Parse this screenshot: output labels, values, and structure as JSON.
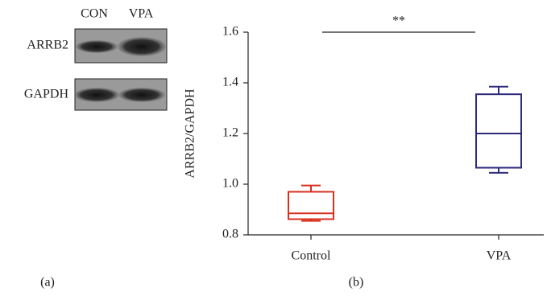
{
  "panel_a": {
    "lanes": [
      "CON",
      "VPA"
    ],
    "rows": [
      "ARRB2",
      "GAPDH"
    ],
    "label": "(a)"
  },
  "chart_data": {
    "type": "box",
    "label": "(b)",
    "y_label": "ARRB2/GAPDH",
    "categories": [
      "Control",
      "VPA"
    ],
    "boxes": [
      {
        "min": 0.855,
        "q1": 0.862,
        "median": 0.885,
        "q3": 0.97,
        "max": 0.995,
        "color": "#d9301e"
      },
      {
        "min": 1.045,
        "q1": 1.065,
        "median": 1.2,
        "q3": 1.355,
        "max": 1.385,
        "color": "#2e2b7c"
      }
    ],
    "ylim": [
      0.8,
      1.6
    ],
    "yticks": [
      0.8,
      {
        "value": 1,
        "label": "1.0"
      },
      1.2,
      1.4,
      1.6
    ],
    "annotation": "**"
  }
}
